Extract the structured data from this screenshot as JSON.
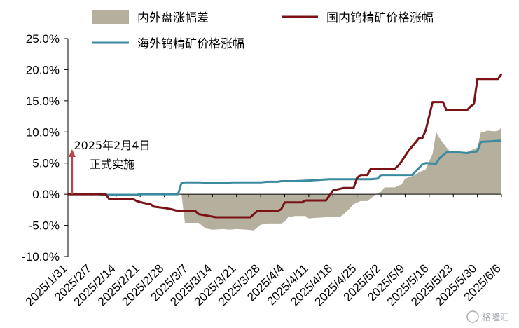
{
  "chart_data": {
    "type": "line",
    "title": "",
    "xlabel": "",
    "ylabel": "",
    "ylim": [
      -10,
      25
    ],
    "y_ticks": [
      -10,
      -5,
      0,
      5,
      10,
      15,
      20,
      25
    ],
    "y_tick_labels": [
      "-10.0%",
      "-5.0%",
      "0.0%",
      "5.0%",
      "10.0%",
      "15.0%",
      "20.0%",
      "25.0%"
    ],
    "x_tick_labels": [
      "2025/1/31",
      "2025/2/7",
      "2025/2/14",
      "2025/2/21",
      "2025/2/28",
      "2025/3/7",
      "2025/3/14",
      "2025/3/21",
      "2025/3/28",
      "2025/4/4",
      "2025/4/11",
      "2025/4/18",
      "2025/4/25",
      "2025/5/2",
      "2025/5/9",
      "2025/5/16",
      "2025/5/23",
      "2025/5/30",
      "2025/6/6"
    ],
    "x_range_days": [
      0,
      126
    ],
    "legend_placement": "top",
    "series": [
      {
        "name": "内外盘涨幅差",
        "kind": "area",
        "color": "#b5b09d",
        "points": [
          [
            0,
            0
          ],
          [
            9,
            0
          ],
          [
            15,
            0
          ],
          [
            23,
            0
          ],
          [
            33,
            0
          ],
          [
            34,
            -4.6
          ],
          [
            38,
            -4.6
          ],
          [
            40,
            -5.5
          ],
          [
            42,
            -5.7
          ],
          [
            45,
            -5.6
          ],
          [
            47,
            -5.7
          ],
          [
            49,
            -5.6
          ],
          [
            52,
            -5.7
          ],
          [
            54,
            -5.8
          ],
          [
            56,
            -4.9
          ],
          [
            58,
            -4.7
          ],
          [
            62,
            -4.7
          ],
          [
            63,
            -4.4
          ],
          [
            64,
            -3.7
          ],
          [
            66,
            -3.5
          ],
          [
            69,
            -3.5
          ],
          [
            70,
            -3.9
          ],
          [
            72,
            -3.8
          ],
          [
            75,
            -3.7
          ],
          [
            77,
            -3.7
          ],
          [
            79,
            -3.7
          ],
          [
            81,
            -2.8
          ],
          [
            83,
            -1.6
          ],
          [
            85,
            -1.1
          ],
          [
            87,
            -1.1
          ],
          [
            90,
            0.2
          ],
          [
            91,
            0.4
          ],
          [
            92,
            1.1
          ],
          [
            95,
            1.1
          ],
          [
            97,
            1.6
          ],
          [
            98,
            2.5
          ],
          [
            100,
            2.9
          ],
          [
            102,
            3.5
          ],
          [
            104,
            4.0
          ],
          [
            106,
            6.5
          ],
          [
            107,
            10.0
          ],
          [
            108,
            9.0
          ],
          [
            110,
            7.5
          ],
          [
            111,
            6.9
          ],
          [
            113,
            6.8
          ],
          [
            116,
            6.8
          ],
          [
            117,
            7.0
          ],
          [
            119,
            7.5
          ],
          [
            120,
            9.9
          ],
          [
            122,
            10.2
          ],
          [
            124,
            10.1
          ],
          [
            125,
            10.2
          ],
          [
            126,
            10.7
          ]
        ]
      },
      {
        "name": "国内钨精矿价格涨幅",
        "kind": "line",
        "color": "#7a1216",
        "points": [
          [
            0,
            0
          ],
          [
            11,
            0
          ],
          [
            12,
            -0.8
          ],
          [
            19,
            -0.8
          ],
          [
            20,
            -1.1
          ],
          [
            22,
            -1.4
          ],
          [
            24,
            -1.6
          ],
          [
            25,
            -2.0
          ],
          [
            28,
            -2.2
          ],
          [
            30,
            -2.4
          ],
          [
            32,
            -2.7
          ],
          [
            37,
            -2.7
          ],
          [
            38,
            -3.2
          ],
          [
            41,
            -3.5
          ],
          [
            43,
            -3.7
          ],
          [
            53,
            -3.7
          ],
          [
            54,
            -3.2
          ],
          [
            55,
            -2.7
          ],
          [
            61,
            -2.7
          ],
          [
            62,
            -2.4
          ],
          [
            63,
            -1.3
          ],
          [
            68,
            -1.3
          ],
          [
            69,
            -1.0
          ],
          [
            75,
            -1.0
          ],
          [
            76,
            -0.2
          ],
          [
            77,
            0.6
          ],
          [
            80,
            1.0
          ],
          [
            83,
            1.0
          ],
          [
            84,
            2.6
          ],
          [
            85,
            3.1
          ],
          [
            87,
            3.1
          ],
          [
            88,
            4.1
          ],
          [
            95,
            4.1
          ],
          [
            96,
            4.6
          ],
          [
            97,
            5.3
          ],
          [
            99,
            7.0
          ],
          [
            101,
            8.3
          ],
          [
            102,
            9.0
          ],
          [
            103,
            9.0
          ],
          [
            104,
            10.3
          ],
          [
            106,
            14.8
          ],
          [
            109,
            14.8
          ],
          [
            110,
            13.5
          ],
          [
            116,
            13.5
          ],
          [
            117,
            14.1
          ],
          [
            118,
            14.5
          ],
          [
            119,
            18.5
          ],
          [
            125,
            18.5
          ],
          [
            126,
            19.3
          ]
        ]
      },
      {
        "name": "海外钨精矿价格涨幅",
        "kind": "line",
        "color": "#3a8aa0",
        "points": [
          [
            0,
            0
          ],
          [
            9,
            0
          ],
          [
            10,
            -0.1
          ],
          [
            20,
            -0.1
          ],
          [
            21,
            0
          ],
          [
            32,
            0
          ],
          [
            33,
            1.8
          ],
          [
            34,
            1.9
          ],
          [
            38,
            1.9
          ],
          [
            44,
            1.8
          ],
          [
            48,
            1.9
          ],
          [
            56,
            1.9
          ],
          [
            58,
            2.0
          ],
          [
            61,
            2.0
          ],
          [
            62,
            2.1
          ],
          [
            66,
            2.1
          ],
          [
            70,
            2.2
          ],
          [
            76,
            2.4
          ],
          [
            85,
            2.4
          ],
          [
            88,
            2.4
          ],
          [
            90,
            2.5
          ],
          [
            91,
            3.1
          ],
          [
            95,
            3.1
          ],
          [
            96,
            3.1
          ],
          [
            100,
            3.1
          ],
          [
            102,
            4.2
          ],
          [
            103,
            4.8
          ],
          [
            104,
            5.0
          ],
          [
            107,
            4.9
          ],
          [
            108,
            5.8
          ],
          [
            110,
            6.7
          ],
          [
            112,
            6.8
          ],
          [
            116,
            6.6
          ],
          [
            119,
            6.9
          ],
          [
            120,
            8.4
          ],
          [
            123,
            8.5
          ],
          [
            126,
            8.6
          ]
        ]
      }
    ],
    "annotation": {
      "line1": "2025年2月4日",
      "line2": "正式实施",
      "arrow_color": "#b9474a",
      "x_day": 1,
      "y_from": 0,
      "y_to": 7
    }
  },
  "watermark": {
    "text": "格隆汇"
  }
}
